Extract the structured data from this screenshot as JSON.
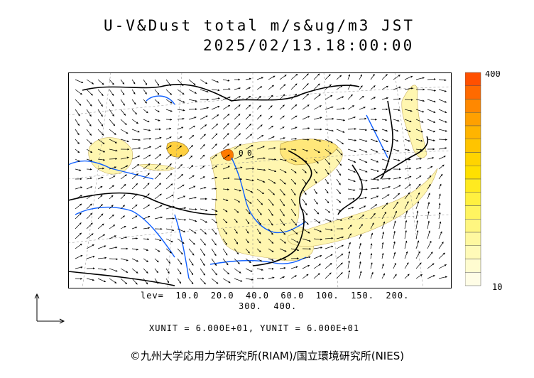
{
  "header": {
    "title_line1": "U-V&Dust total m/s&ug/m3 JST",
    "title_line2": "2025/02/13.18:00:00"
  },
  "legend": {
    "max_label": "400",
    "min_label": "10",
    "colors": [
      "#ff5000",
      "#ff6a00",
      "#ff8800",
      "#ffa000",
      "#ffb400",
      "#ffc400",
      "#ffd400",
      "#ffe000",
      "#ffea20",
      "#fff040",
      "#fff460",
      "#fff680",
      "#fff8a0",
      "#fffab8",
      "#fffcd0",
      "#fffde6"
    ]
  },
  "levels": {
    "line1": "lev=  10.0  20.0  40.0  60.0  100.  150.  200.",
    "line2": "300.  400."
  },
  "units": "XUNIT = 6.000E+01, YUNIT = 6.000E+01",
  "copyright": "©九州大学応用力学研究所(RIAM)/国立環境研究所(NIES)",
  "map_colors": {
    "dust_fill": "#fff6b0",
    "dust_core": "#ffd040",
    "river": "#1060ff",
    "coast": "#000000",
    "border": "#000000",
    "grid": "#888888"
  }
}
